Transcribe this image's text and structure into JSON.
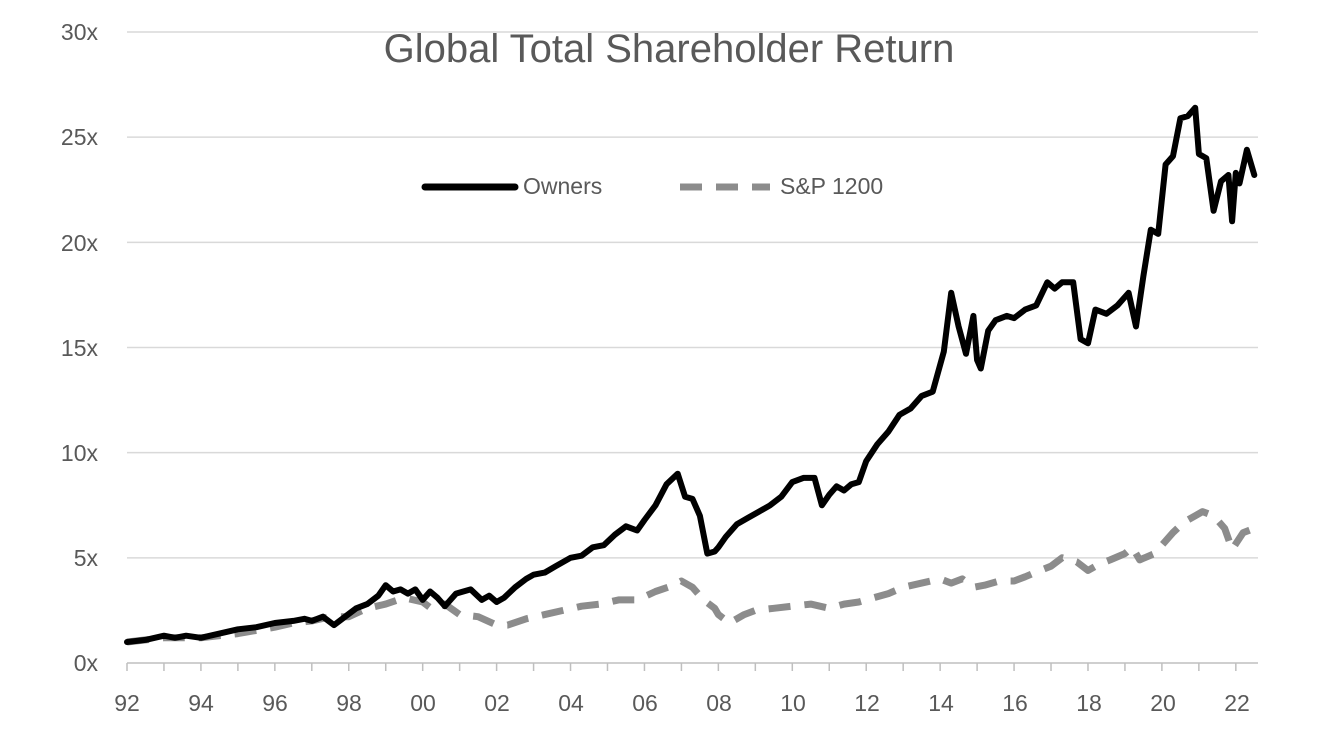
{
  "chart_data": {
    "type": "line",
    "title": "Global Total Shareholder Return",
    "xlabel": "",
    "ylabel": "",
    "x_tick_labels": [
      "92",
      "94",
      "96",
      "98",
      "00",
      "02",
      "04",
      "06",
      "08",
      "10",
      "12",
      "14",
      "16",
      "18",
      "20",
      "22"
    ],
    "y_tick_labels": [
      "0x",
      "5x",
      "10x",
      "15x",
      "20x",
      "25x",
      "30x"
    ],
    "xlim": [
      1992.0,
      2022.6
    ],
    "ylim": [
      0,
      30
    ],
    "grid": "horizontal",
    "legend_position": "top-center",
    "colors": {
      "owners": "#000000",
      "sp1200": "#8c8c8c",
      "grid": "#d9d9d9",
      "axis": "#bfbfbf",
      "text": "#595959"
    },
    "series": [
      {
        "name": "Owners",
        "style": "solid",
        "x": [
          1992.0,
          1992.5,
          1993.0,
          1993.3,
          1993.6,
          1994.0,
          1994.5,
          1995.0,
          1995.5,
          1996.0,
          1996.5,
          1996.8,
          1997.0,
          1997.3,
          1997.6,
          1997.9,
          1998.2,
          1998.5,
          1998.8,
          1999.0,
          1999.2,
          1999.4,
          1999.6,
          1999.8,
          2000.0,
          2000.2,
          2000.4,
          2000.6,
          2000.9,
          2001.1,
          2001.3,
          2001.6,
          2001.8,
          2002.0,
          2002.2,
          2002.5,
          2002.8,
          2003.0,
          2003.3,
          2003.6,
          2004.0,
          2004.3,
          2004.6,
          2004.9,
          2005.2,
          2005.5,
          2005.8,
          2006.0,
          2006.3,
          2006.6,
          2006.9,
          2007.1,
          2007.3,
          2007.5,
          2007.7,
          2007.9,
          2008.0,
          2008.2,
          2008.5,
          2008.8,
          2009.1,
          2009.4,
          2009.7,
          2010.0,
          2010.3,
          2010.6,
          2010.8,
          2011.0,
          2011.2,
          2011.4,
          2011.6,
          2011.8,
          2012.0,
          2012.3,
          2012.6,
          2012.9,
          2013.2,
          2013.5,
          2013.8,
          2014.1,
          2014.3,
          2014.5,
          2014.7,
          2014.9,
          2015.0,
          2015.1,
          2015.3,
          2015.5,
          2015.8,
          2016.0,
          2016.3,
          2016.6,
          2016.9,
          2017.1,
          2017.3,
          2017.6,
          2017.8,
          2018.0,
          2018.2,
          2018.5,
          2018.8,
          2019.1,
          2019.3,
          2019.5,
          2019.7,
          2019.9,
          2020.1,
          2020.3,
          2020.5,
          2020.7,
          2020.9,
          2021.0,
          2021.2,
          2021.4,
          2021.6,
          2021.8,
          2021.9,
          2022.0,
          2022.1,
          2022.3,
          2022.5
        ],
        "values": [
          1.0,
          1.1,
          1.3,
          1.2,
          1.3,
          1.2,
          1.4,
          1.6,
          1.7,
          1.9,
          2.0,
          2.1,
          2.0,
          2.2,
          1.8,
          2.2,
          2.6,
          2.8,
          3.2,
          3.7,
          3.4,
          3.5,
          3.3,
          3.5,
          3.0,
          3.4,
          3.1,
          2.7,
          3.3,
          3.4,
          3.5,
          3.0,
          3.2,
          2.9,
          3.1,
          3.6,
          4.0,
          4.2,
          4.3,
          4.6,
          5.0,
          5.1,
          5.5,
          5.6,
          6.1,
          6.5,
          6.3,
          6.8,
          7.5,
          8.5,
          9.0,
          7.9,
          7.8,
          7.0,
          5.2,
          5.3,
          5.5,
          6.0,
          6.6,
          6.9,
          7.2,
          7.5,
          7.9,
          8.6,
          8.8,
          8.8,
          7.5,
          8.0,
          8.4,
          8.2,
          8.5,
          8.6,
          9.6,
          10.4,
          11.0,
          11.8,
          12.1,
          12.7,
          12.9,
          14.8,
          17.6,
          16.0,
          14.7,
          16.5,
          14.4,
          14.0,
          15.8,
          16.3,
          16.5,
          16.4,
          16.8,
          17.0,
          18.1,
          17.8,
          18.1,
          18.1,
          15.4,
          15.2,
          16.8,
          16.6,
          17.0,
          17.6,
          16.0,
          18.4,
          20.6,
          20.4,
          23.7,
          24.1,
          25.9,
          26.0,
          26.4,
          24.2,
          24.0,
          21.5,
          22.9,
          23.2,
          21.0,
          23.3,
          22.8,
          24.4,
          23.2
        ]
      },
      {
        "name": "S&P 1200",
        "style": "dashed",
        "x": [
          1992.0,
          1993.0,
          1994.0,
          1995.0,
          1996.0,
          1996.5,
          1997.0,
          1997.5,
          1998.0,
          1998.5,
          1999.0,
          1999.5,
          2000.0,
          2000.3,
          2000.6,
          2001.0,
          2001.5,
          2002.0,
          2002.3,
          2002.8,
          2003.3,
          2003.8,
          2004.3,
          2004.8,
          2005.3,
          2005.8,
          2006.3,
          2006.8,
          2007.0,
          2007.3,
          2007.6,
          2007.9,
          2008.0,
          2008.3,
          2008.7,
          2009.0,
          2009.5,
          2010.0,
          2010.5,
          2011.0,
          2011.4,
          2011.8,
          2012.2,
          2012.6,
          2013.0,
          2013.5,
          2014.0,
          2014.3,
          2014.6,
          2014.9,
          2015.2,
          2015.6,
          2016.0,
          2016.3,
          2016.7,
          2017.0,
          2017.3,
          2017.7,
          2018.0,
          2018.3,
          2018.6,
          2019.0,
          2019.2,
          2019.4,
          2019.8,
          2020.0,
          2020.3,
          2020.6,
          2020.9,
          2021.1,
          2021.4,
          2021.7,
          2021.9,
          2022.2,
          2022.5
        ],
        "values": [
          1.0,
          1.2,
          1.2,
          1.4,
          1.7,
          1.9,
          2.0,
          2.2,
          2.2,
          2.6,
          2.8,
          3.1,
          2.9,
          2.5,
          2.8,
          2.3,
          2.2,
          1.8,
          1.8,
          2.1,
          2.3,
          2.5,
          2.7,
          2.8,
          3.0,
          3.0,
          3.4,
          3.7,
          3.9,
          3.6,
          3.0,
          2.6,
          2.3,
          1.9,
          2.3,
          2.5,
          2.6,
          2.7,
          2.8,
          2.6,
          2.8,
          2.9,
          3.1,
          3.3,
          3.6,
          3.8,
          4.0,
          3.8,
          4.0,
          3.6,
          3.7,
          3.9,
          3.9,
          4.1,
          4.4,
          4.6,
          5.0,
          4.8,
          4.4,
          4.7,
          4.9,
          5.2,
          5.5,
          4.9,
          5.2,
          5.6,
          6.2,
          6.7,
          7.0,
          7.2,
          7.0,
          6.4,
          5.4,
          6.2,
          6.4
        ]
      }
    ]
  }
}
